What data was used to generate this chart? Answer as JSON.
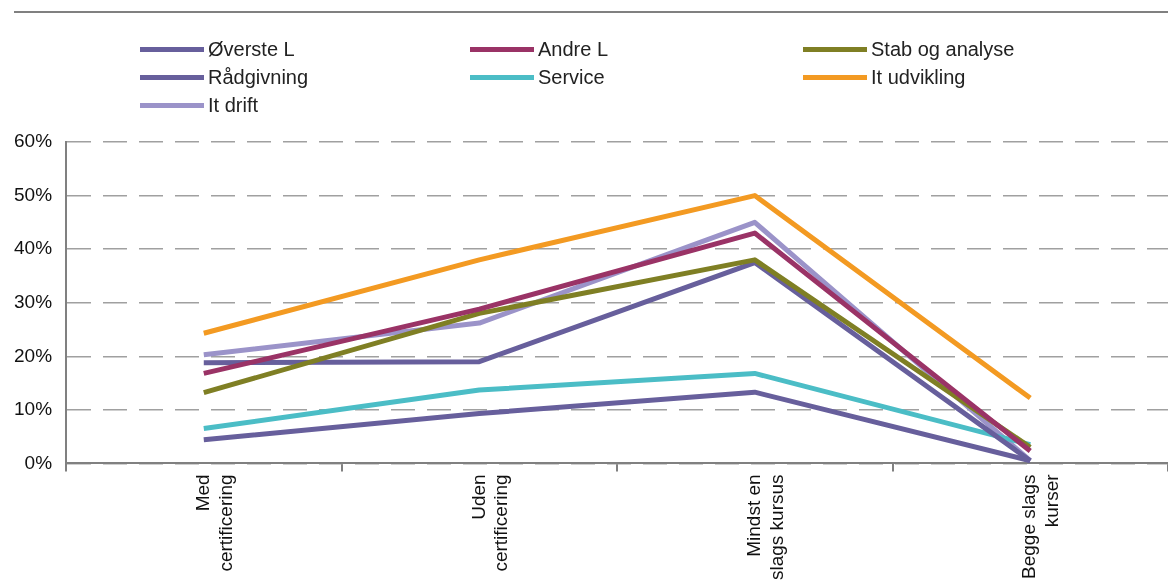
{
  "chart_data": {
    "type": "line",
    "categories": [
      "Med certificering",
      "Uden certificering",
      "Mindst en slags kursus",
      "Begge slags kurser"
    ],
    "series": [
      {
        "name": "Øverste L",
        "color": "#675f9c",
        "values": [
          4.4,
          9.3,
          13.3,
          0.5
        ]
      },
      {
        "name": "Andre L",
        "color": "#9a3366",
        "values": [
          16.8,
          28.8,
          43,
          2.3
        ]
      },
      {
        "name": "Stab og analyse",
        "color": "#7f7f24",
        "values": [
          13.2,
          28,
          38,
          3
        ]
      },
      {
        "name": "Rådgivning",
        "color": "#675f9c",
        "values": [
          18.8,
          19,
          37.5,
          0.5
        ]
      },
      {
        "name": "Service",
        "color": "#4bbdc6",
        "values": [
          6.5,
          13.7,
          16.8,
          3.5
        ]
      },
      {
        "name": "It udvikling",
        "color": "#f39a22",
        "values": [
          24.3,
          38,
          50,
          12.2
        ]
      },
      {
        "name": "It drift",
        "color": "#9b93c9",
        "values": [
          20.3,
          26.2,
          45,
          0.5
        ]
      }
    ],
    "ylim": [
      0,
      60
    ],
    "yticks": [
      {
        "value": 0,
        "label": "0%"
      },
      {
        "value": 10,
        "label": "10%"
      },
      {
        "value": 20,
        "label": "20%"
      },
      {
        "value": 30,
        "label": "30%"
      },
      {
        "value": 40,
        "label": "40%"
      },
      {
        "value": 50,
        "label": "50%"
      },
      {
        "value": 60,
        "label": "60%"
      }
    ],
    "grid": "y",
    "legend": "top",
    "marker": "none",
    "line_style": "solid"
  }
}
